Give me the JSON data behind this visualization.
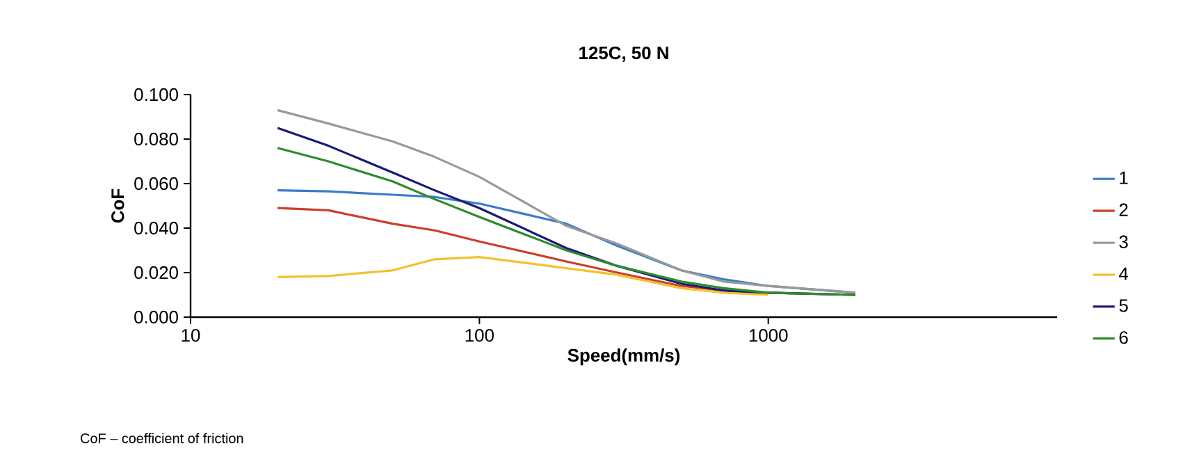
{
  "chart_data": {
    "type": "line",
    "title": "125C, 50 N",
    "xlabel": "Speed(mm/s)",
    "ylabel": "CoF",
    "annotations": [
      "CoF – coefficient of friction"
    ],
    "log": "x",
    "xlim": [
      10,
      10000
    ],
    "xticks": [
      10,
      100,
      1000
    ],
    "ylim": [
      0,
      0.1
    ],
    "yticks": [
      {
        "value": 0,
        "label": "0.000"
      },
      {
        "value": 0.02,
        "label": "0.020"
      },
      {
        "value": 0.04,
        "label": "0.040"
      },
      {
        "value": 0.06,
        "label": "0.060"
      },
      {
        "value": 0.08,
        "label": "0.080"
      },
      {
        "value": 0.1,
        "label": "0.100"
      }
    ],
    "grid": false,
    "legend": "right",
    "marker": "none",
    "line_style": "solid",
    "x": [
      20,
      30,
      50,
      70,
      100,
      200,
      300,
      500,
      700,
      1000,
      2000
    ],
    "series": [
      {
        "name": "1",
        "color": "#3a7dc9",
        "values": [
          0.057,
          0.0565,
          0.055,
          0.054,
          0.051,
          0.042,
          0.032,
          0.021,
          0.017,
          0.014,
          0.011
        ]
      },
      {
        "name": "2",
        "color": "#c9402c",
        "values": [
          0.049,
          0.048,
          0.042,
          0.039,
          0.034,
          0.025,
          0.02,
          0.014,
          0.012,
          0.011,
          0.01
        ]
      },
      {
        "name": "3",
        "color": "#999999",
        "values": [
          0.093,
          0.087,
          0.079,
          0.072,
          0.063,
          0.041,
          0.033,
          0.021,
          0.016,
          0.014,
          0.011
        ]
      },
      {
        "name": "4",
        "color": "#f2c12e",
        "values": [
          0.018,
          0.0185,
          0.021,
          0.026,
          0.027,
          0.022,
          0.019,
          0.013,
          0.011,
          0.01,
          null
        ]
      },
      {
        "name": "5",
        "color": "#1a1a7a",
        "values": [
          0.085,
          0.077,
          0.065,
          0.057,
          0.049,
          0.031,
          0.023,
          0.015,
          0.012,
          0.011,
          0.01
        ]
      },
      {
        "name": "6",
        "color": "#2e8b2e",
        "values": [
          0.076,
          0.07,
          0.061,
          0.053,
          0.045,
          0.03,
          0.023,
          0.016,
          0.013,
          0.011,
          0.01
        ]
      }
    ]
  }
}
